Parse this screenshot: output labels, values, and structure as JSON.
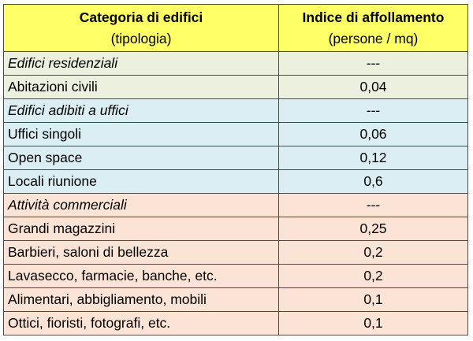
{
  "header": {
    "col1_title": "Categoria di edifici",
    "col1_subtitle": "(tipologia)",
    "col2_title": "Indice di affollamento",
    "col2_subtitle": "(persone / mq)"
  },
  "colors": {
    "header_bg": "#ffff66",
    "residenziali_bg": "#ebf1de",
    "uffici_bg": "#dbeef4",
    "commerciali_bg": "#fbe4d6"
  },
  "sections": [
    {
      "category": "Edifici residenziali",
      "category_value": "---",
      "rows": [
        {
          "label": "Abitazioni civili",
          "value": "0,04"
        }
      ]
    },
    {
      "category": "Edifici adibiti a uffici",
      "category_value": "---",
      "rows": [
        {
          "label": "Uffici singoli",
          "value": "0,06"
        },
        {
          "label": "Open space",
          "value": "0,12"
        },
        {
          "label": "Locali riunione",
          "value": "0,6"
        }
      ]
    },
    {
      "category": "Attività commerciali",
      "category_value": "---",
      "rows": [
        {
          "label": "Grandi magazzini",
          "value": "0,25"
        },
        {
          "label": "Barbieri, saloni di bellezza",
          "value": "0,2"
        },
        {
          "label": "Lavasecco, farmacie, banche, etc.",
          "value": "0,2"
        },
        {
          "label": "Alimentari, abbigliamento, mobili",
          "value": "0,1"
        },
        {
          "label": "Ottici, fioristi, fotografi, etc.",
          "value": "0,1"
        }
      ]
    }
  ]
}
